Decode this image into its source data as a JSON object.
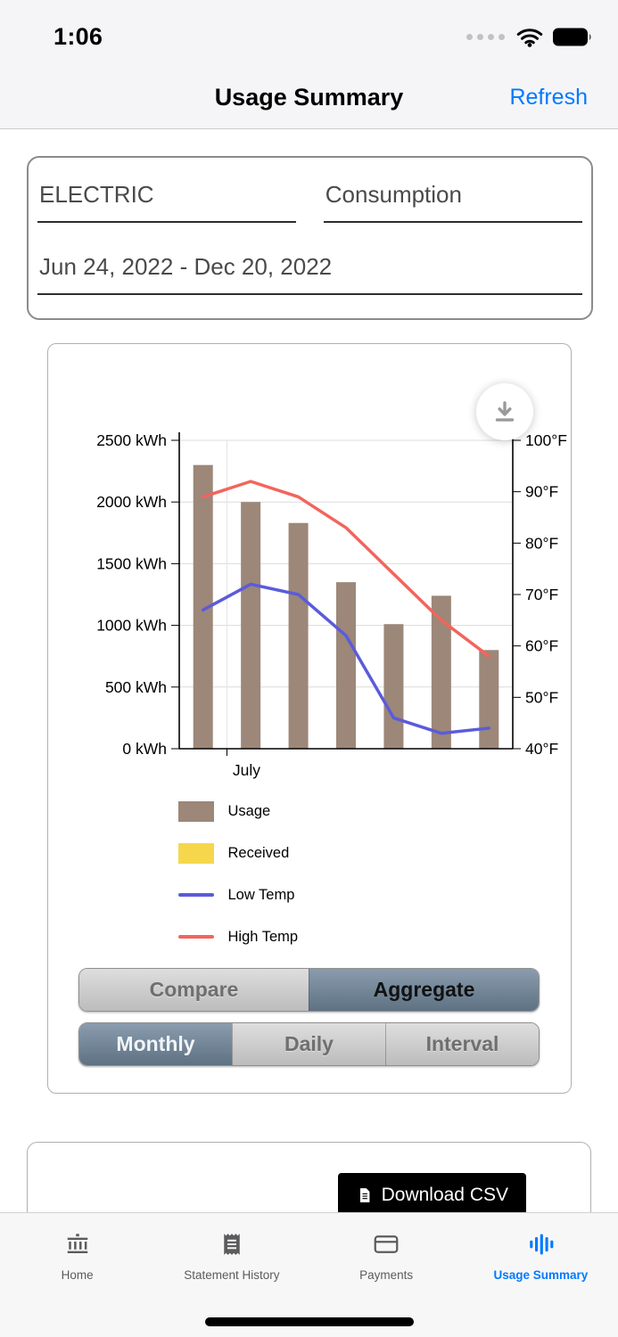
{
  "status_bar": {
    "time": "1:06"
  },
  "nav_bar": {
    "title": "Usage Summary",
    "refresh": "Refresh",
    "accent_color": "#007AFF"
  },
  "filter_card": {
    "service_type": "ELECTRIC",
    "reading_type": "Consumption",
    "date_range": "Jun 24, 2022 - Dec 20, 2022"
  },
  "chart_data": {
    "type": "bar",
    "title": "",
    "x_axis": {
      "visible_tick_label": "July",
      "tick_fraction": 0.143,
      "n_points": 7
    },
    "left_axis": {
      "min": 0,
      "max": 2500,
      "step": 500,
      "unit": " kWh"
    },
    "right_axis": {
      "min": 40,
      "max": 100,
      "step": 10,
      "unit": "°F"
    },
    "grid": true,
    "legend_position": "bottom-left",
    "series": [
      {
        "name": "Usage",
        "kind": "bar",
        "axis": "left",
        "color": "#9C8779",
        "values": [
          2300,
          2000,
          1830,
          1350,
          1010,
          1240,
          800
        ]
      },
      {
        "name": "Received",
        "kind": "bar",
        "axis": "left",
        "color": "#F6D74B",
        "values": [
          0,
          0,
          0,
          0,
          0,
          0,
          0
        ]
      },
      {
        "name": "Low Temp",
        "kind": "line",
        "axis": "right",
        "color": "#5B5BDB",
        "values": [
          67,
          72,
          70,
          62,
          46,
          43,
          44
        ]
      },
      {
        "name": "High Temp",
        "kind": "line",
        "axis": "right",
        "color": "#F2655D",
        "values": [
          89,
          92,
          89,
          83,
          74,
          65,
          58
        ]
      }
    ]
  },
  "chart_controls": {
    "view_mode": {
      "options": [
        "Compare",
        "Aggregate"
      ],
      "selected": "Aggregate"
    },
    "granularity": {
      "options": [
        "Monthly",
        "Daily",
        "Interval"
      ],
      "selected": "Monthly"
    }
  },
  "export_card": {
    "download_csv": "Download CSV"
  },
  "tab_bar": {
    "selected": "Usage Summary",
    "selected_color": "#007AFF",
    "items": [
      {
        "label": "Home",
        "icon": "bank-icon"
      },
      {
        "label": "Statement History",
        "icon": "receipt-icon"
      },
      {
        "label": "Payments",
        "icon": "credit-card-icon"
      },
      {
        "label": "Usage Summary",
        "icon": "usage-chart-icon"
      }
    ]
  }
}
